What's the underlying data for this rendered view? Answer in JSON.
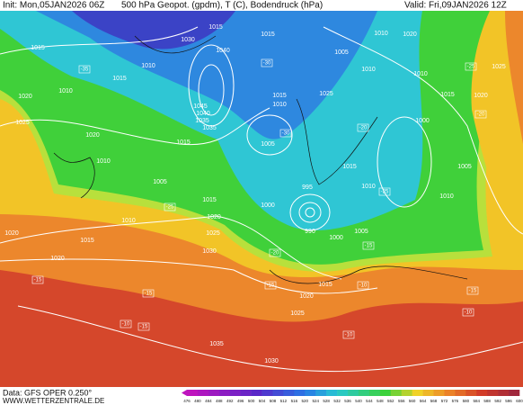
{
  "header": {
    "init": "Init: Mon,05JAN2026 06Z",
    "title": "500 hPa Geopot. (gpdm), T (C), Bodendruck (hPa)",
    "valid": "Valid: Fri,09JAN2026 12Z"
  },
  "footer": {
    "data": "Data: GFS OPER 0.250°",
    "site": "WWW.WETTERZENTRALE.DE"
  },
  "colorbar_ticks": [
    476,
    480,
    484,
    488,
    492,
    496,
    500,
    504,
    508,
    512,
    516,
    520,
    524,
    528,
    532,
    536,
    540,
    544,
    548,
    552,
    556,
    560,
    564,
    568,
    572,
    576,
    580,
    584,
    588,
    592,
    596,
    600
  ],
  "isobar_labels": [
    "1015",
    "1010",
    "1015",
    "1010",
    "1020",
    "1010",
    "1005",
    "1015",
    "1015",
    "1015",
    "1005",
    "1010",
    "1010",
    "1020",
    "1025",
    "1020",
    "1015",
    "1010",
    "1000",
    "1005",
    "1010",
    "1015",
    "1020",
    "1025",
    "1030",
    "1015",
    "1020",
    "1010",
    "1020",
    "1015",
    "1010",
    "1025",
    "1005",
    "1000",
    "995",
    "990",
    "1000",
    "1005",
    "1010",
    "1015",
    "1015",
    "1020",
    "1025",
    "1035",
    "1030",
    "1025",
    "1020",
    "1045",
    "1040",
    "1035",
    "1030",
    "1040",
    "1035"
  ],
  "temperature_labels": [
    "-35",
    "-30",
    "-25",
    "-20",
    "-30",
    "-25",
    "-20",
    "-25",
    "-20",
    "-15",
    "-15",
    "-10",
    "-15",
    "-15",
    "-15",
    "-10",
    "-10",
    "-10",
    "-15"
  ]
}
